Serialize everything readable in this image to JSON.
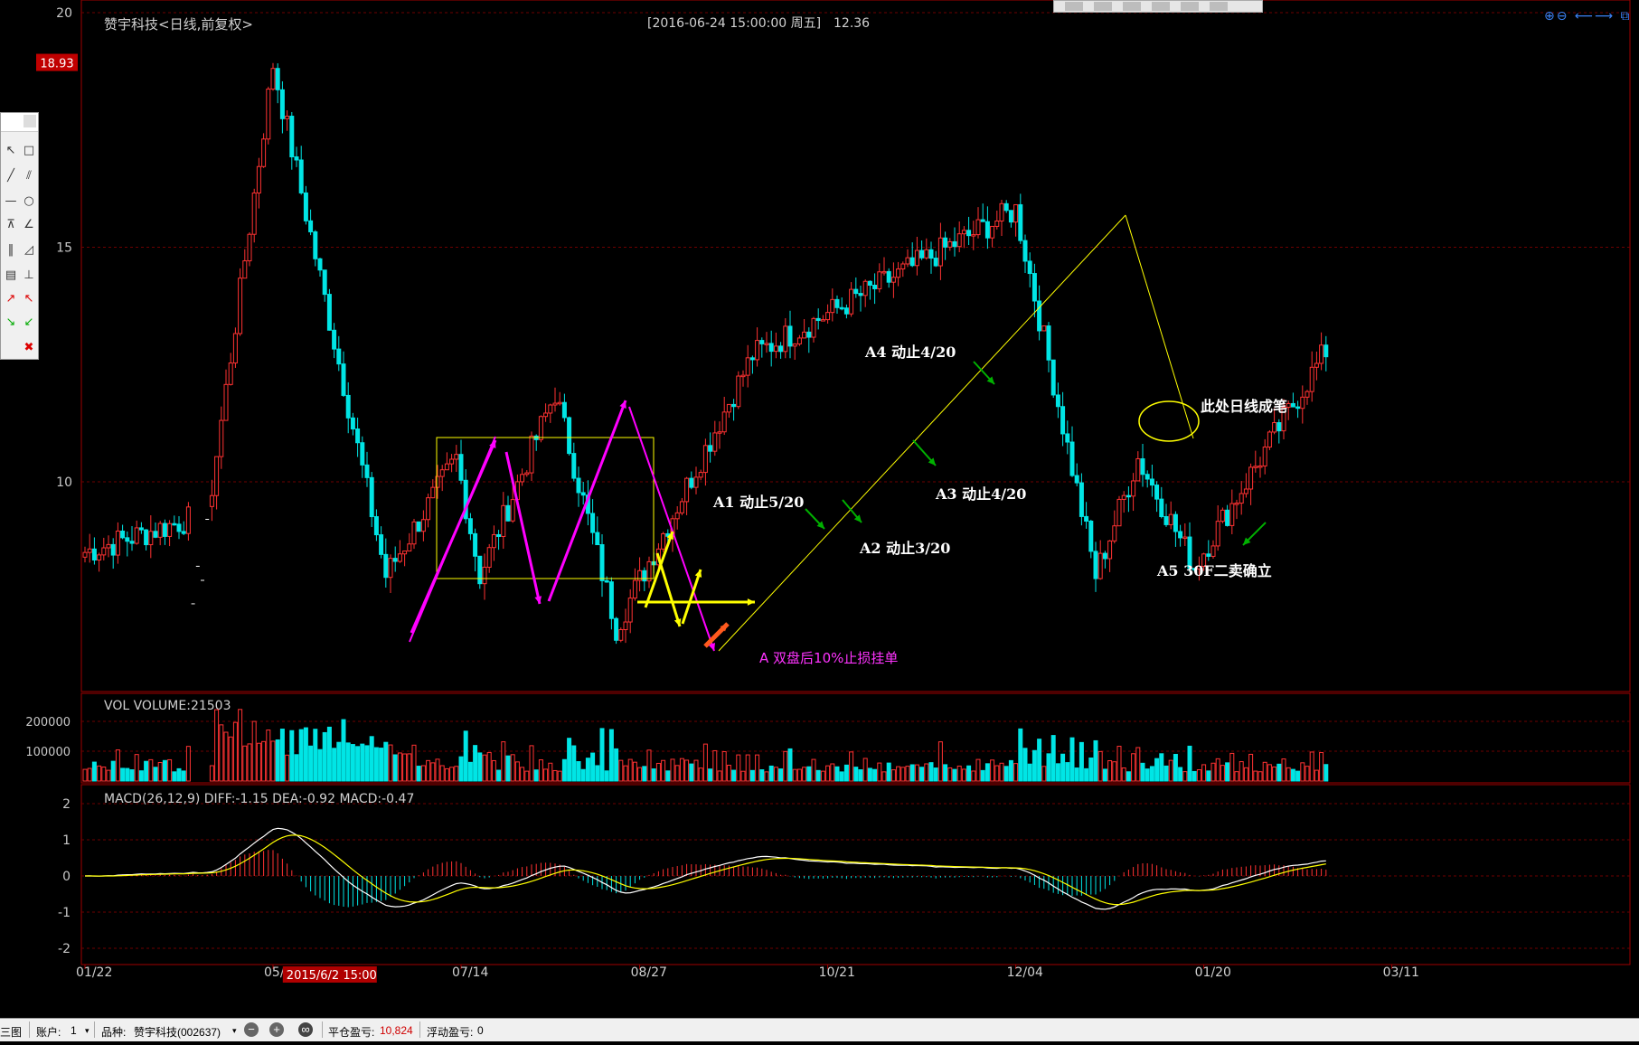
{
  "header": {
    "stock_title": "赞宇科技<日线,前复权>",
    "datetime": "[2016-06-24  15:00:00 周五]",
    "last_price": "12.36"
  },
  "price_axis": {
    "ticks": [
      "20",
      "15",
      "10"
    ],
    "tick_values": [
      20,
      15,
      10
    ],
    "highlight_value": 18.93,
    "highlight_label": "18.93"
  },
  "volume_panel": {
    "title": "VOL  VOLUME:21503",
    "ticks": [
      "200000",
      "100000"
    ],
    "tick_values": [
      200000,
      100000
    ]
  },
  "macd_panel": {
    "title": "MACD(26,12,9)  DIFF:-1.15 DEA:-0.92 MACD:-0.47",
    "ticks": [
      "2",
      "1",
      "0",
      "-1",
      "-2"
    ],
    "tick_values": [
      2,
      1,
      0,
      -1,
      -2
    ]
  },
  "x_axis": {
    "labels": [
      "01/22",
      "05/28",
      "07/14",
      "08/27",
      "10/21",
      "12/04",
      "01/20",
      "03/11"
    ],
    "label_index": [
      0,
      40,
      80,
      118,
      158,
      198,
      238,
      278
    ],
    "cursor_label": "2015/6/2 15:00",
    "cursor_index": 44
  },
  "annotations": {
    "a1": "A1 动止5/20",
    "a2": "A2 动止3/20",
    "a3": "A3 动止4/20",
    "a4": "A4 动止4/20",
    "a5": "A5 30F二卖确立",
    "brush": "此处日线成笔",
    "stoploss": "A 双盘后10%止损挂单"
  },
  "colors": {
    "up": "#ff3232",
    "up_body": "#000000",
    "down": "#00e5e5",
    "grid": "#6e0000",
    "axis": "#a00000",
    "diff": "#ffffff",
    "dea": "#ffff00",
    "magenta": "#ff00ff",
    "yellow": "#ffff00",
    "green_arrow": "#00b000",
    "text_annot": "#ffffff",
    "stoploss_text": "#ff33ff"
  },
  "status": {
    "view": "三图",
    "account_label": "账户:",
    "account_value": "1",
    "variety_label": "品种:",
    "variety_value": "赞宇科技(002637)",
    "pnl_label": "平仓盈亏:",
    "pnl_value": "10,824",
    "float_label": "浮动盈亏:",
    "float_value": "0"
  },
  "chart_data": {
    "type": "candlestick",
    "title": "赞宇科技<日线,前复权>",
    "ylim": [
      6.5,
      20
    ],
    "key_points": [
      {
        "date": "01/22",
        "price": 8.5
      },
      {
        "date": "05/28",
        "price": 18.9
      },
      {
        "date": "07/14",
        "price": 7.2
      },
      {
        "date": "08/27",
        "price": 11.9
      },
      {
        "date": "09/15",
        "price": 7.0
      },
      {
        "date": "12/25",
        "price": 15.8
      },
      {
        "date": "01/27",
        "price": 8.0
      },
      {
        "date": "06/24",
        "price": 12.36
      }
    ],
    "segments": [
      {
        "start": 0,
        "end": 7.8,
        "kind": "flat"
      },
      {
        "start": 7.8,
        "end": 9.2,
        "kind": "gap"
      },
      {
        "start": 9.2,
        "end": 9.2,
        "kind": "flat"
      },
      {
        "start": 9.2,
        "end": 18.9,
        "kind": "trend"
      },
      {
        "start": 18.9,
        "end": 8.0,
        "kind": "trend"
      },
      {
        "start": 8.0,
        "end": 10.5,
        "kind": "trend"
      },
      {
        "start": 10.5,
        "end": 8.0,
        "kind": "trend"
      },
      {
        "start": 8.0,
        "end": 11.9,
        "kind": "trend"
      },
      {
        "start": 11.9,
        "end": 6.9,
        "kind": "trend"
      },
      {
        "start": 6.9,
        "end": 15.8,
        "kind": "trend"
      },
      {
        "start": 15.8,
        "end": 8.0,
        "kind": "trend"
      },
      {
        "start": 8.0,
        "end": 10.5,
        "kind": "trend"
      },
      {
        "start": 10.5,
        "end": 8.2,
        "kind": "trend"
      },
      {
        "start": 8.2,
        "end": 12.8,
        "kind": "trend"
      }
    ]
  }
}
